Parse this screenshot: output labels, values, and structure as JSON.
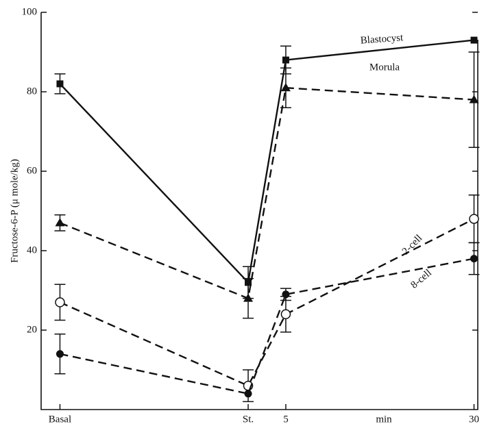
{
  "chart_data": {
    "type": "line",
    "y_label": "Fructose-6-P (μ mole/kg)",
    "x_label": "min",
    "x": [
      -25,
      0,
      5,
      30
    ],
    "xlim": [
      -27.5,
      30.5
    ],
    "xticks": [
      {
        "value": -25,
        "label": "Basal"
      },
      {
        "value": 0,
        "label": "St."
      },
      5,
      30
    ],
    "ylim": [
      0,
      100
    ],
    "yticks": [
      20,
      40,
      60,
      80,
      100
    ],
    "series": [
      {
        "name": "Blastocyst",
        "color": "#111111",
        "line_style": "solid",
        "marker": "square",
        "values": [
          82,
          32,
          88,
          93
        ],
        "errors": [
          2.5,
          4,
          3.5,
          null
        ]
      },
      {
        "name": "Morula",
        "color": "#111111",
        "line_style": "dashed",
        "marker": "triangle",
        "values": [
          47,
          28,
          81,
          78
        ],
        "errors": [
          2,
          5,
          5,
          12
        ]
      },
      {
        "name": "2-cell",
        "color": "#111111",
        "line_style": "dashed",
        "marker": "open-circle",
        "values": [
          27,
          6,
          24,
          48
        ],
        "errors": [
          4.5,
          4,
          4.5,
          6
        ]
      },
      {
        "name": "8-cell",
        "color": "#111111",
        "line_style": "dashed",
        "marker": "circle",
        "values": [
          14,
          4,
          29,
          38
        ],
        "errors": [
          5,
          null,
          1.5,
          4
        ]
      }
    ]
  }
}
